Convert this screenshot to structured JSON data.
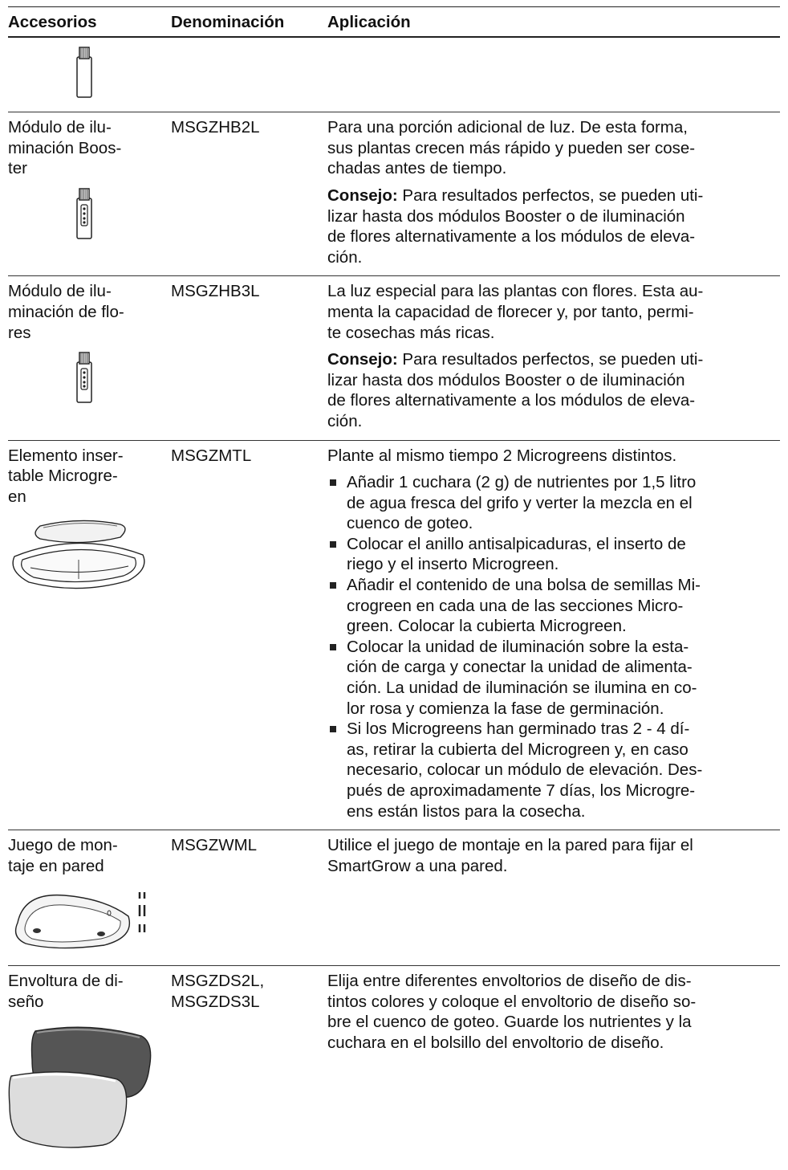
{
  "header": [
    "Accesorios",
    "Denominación",
    "Aplicación"
  ],
  "rows": [
    {
      "name": [
        "Módulo de ilu-",
        "minación Boos-",
        "ter"
      ],
      "code": [
        "MSGZHB2L"
      ],
      "blocks": [
        {
          "lines": [
            "Para una porción adicional de luz. De esta forma,",
            "sus plantas crecen más rápido y pueden ser cose-",
            "chadas antes de tiempo."
          ]
        },
        {
          "bold": "Consejo:",
          "lines": [
            " Para resultados perfectos, se pueden uti-",
            "lizar hasta dos módulos Booster o de iluminación",
            "de flores alternativamente a los módulos de eleva-",
            "ción."
          ]
        }
      ]
    },
    {
      "name": [
        "Módulo de ilu-",
        "minación de flo-",
        "res"
      ],
      "code": [
        "MSGZHB3L"
      ],
      "blocks": [
        {
          "lines": [
            "La luz especial para las plantas con flores. Esta au-",
            "menta la capacidad de florecer y, por tanto, permi-",
            "te cosechas más ricas."
          ]
        },
        {
          "bold": "Consejo:",
          "lines": [
            " Para resultados perfectos, se pueden uti-",
            "lizar hasta dos módulos Booster o de iluminación",
            "de flores alternativamente a los módulos de eleva-",
            "ción."
          ]
        }
      ]
    },
    {
      "name": [
        "Elemento inser-",
        "table Microgre-",
        "en"
      ],
      "code": [
        "MSGZMTL"
      ],
      "blocks": [
        {
          "lines": [
            "Plante al mismo tiempo 2 Microgreens distintos."
          ]
        },
        {
          "bullets": [
            [
              "Añadir 1 cuchara (2 g) de nutrientes por 1,5 litro",
              "de agua fresca del grifo y verter la mezcla en el",
              "cuenco de goteo."
            ],
            [
              "Colocar el anillo antisalpicaduras, el inserto de",
              "riego y el inserto Microgreen."
            ],
            [
              "Añadir el contenido de una bolsa de semillas Mi-",
              "crogreen en cada una de las secciones Micro-",
              "green. Colocar la cubierta Microgreen."
            ],
            [
              "Colocar la unidad de iluminación sobre la esta-",
              "ción de carga y conectar la unidad de alimenta-",
              "ción. La unidad de iluminación se ilumina en co-",
              "lor rosa y comienza la fase de germinación."
            ],
            [
              "Si los Microgreens han germinado tras 2 - 4 dí-",
              "as, retirar la cubierta del Microgreen y, en caso",
              "necesario, colocar un módulo de elevación. Des-",
              "pués de aproximadamente 7 días, los Microgre-",
              "ens están listos para la cosecha."
            ]
          ]
        }
      ]
    },
    {
      "name": [
        "Juego de mon-",
        "taje en pared"
      ],
      "code": [
        "MSGZWML"
      ],
      "blocks": [
        {
          "lines": [
            "Utilice el juego de montaje en la pared para fijar el",
            "SmartGrow a una pared."
          ]
        }
      ]
    },
    {
      "name": [
        "Envoltura de di-",
        "seño"
      ],
      "code": [
        "MSGZDS2L,",
        "MSGZDS3L"
      ],
      "blocks": [
        {
          "lines": [
            "Elija entre diferentes envoltorios de diseño de dis-",
            "tintos colores y coloque el envoltorio de diseño so-",
            "bre el cuenco de goteo. Guarde los nutrientes y la",
            "cuchara en el bolsillo del envoltorio de diseño."
          ]
        }
      ]
    }
  ]
}
